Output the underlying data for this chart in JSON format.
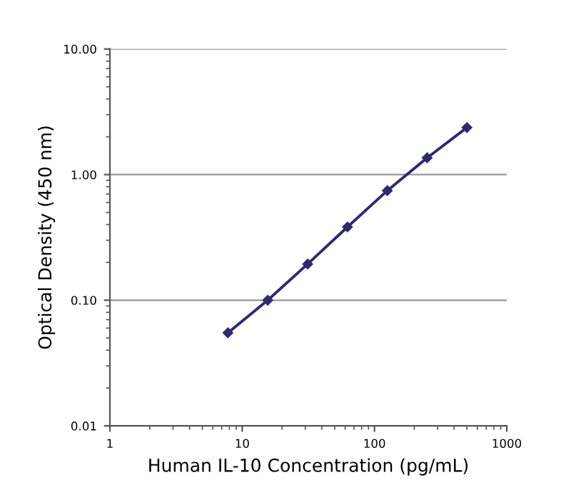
{
  "chart_data": {
    "type": "line",
    "xlabel": "Human IL-10 Concentration (pg/mL)",
    "ylabel": "Optical Density (450 nm)",
    "x": [
      7.8,
      15.6,
      31.25,
      62.5,
      125,
      250,
      500
    ],
    "series": [
      {
        "color": "#2e2a6e",
        "values": [
          0.055,
          0.1,
          0.194,
          0.383,
          0.745,
          1.36,
          2.37
        ]
      }
    ],
    "log": "xy",
    "xlim": [
      1,
      1000
    ],
    "ylim": [
      0.01,
      10
    ],
    "xticks": [
      1,
      10,
      100,
      1000
    ],
    "yticks": [
      {
        "value": 0.01,
        "label": "0.01"
      },
      {
        "value": 0.1,
        "label": "0.10"
      },
      {
        "value": 1,
        "label": "1.00"
      },
      {
        "value": 10,
        "label": "10.00"
      }
    ],
    "grid": "y",
    "marker": "diamond",
    "line_style": "solid"
  }
}
